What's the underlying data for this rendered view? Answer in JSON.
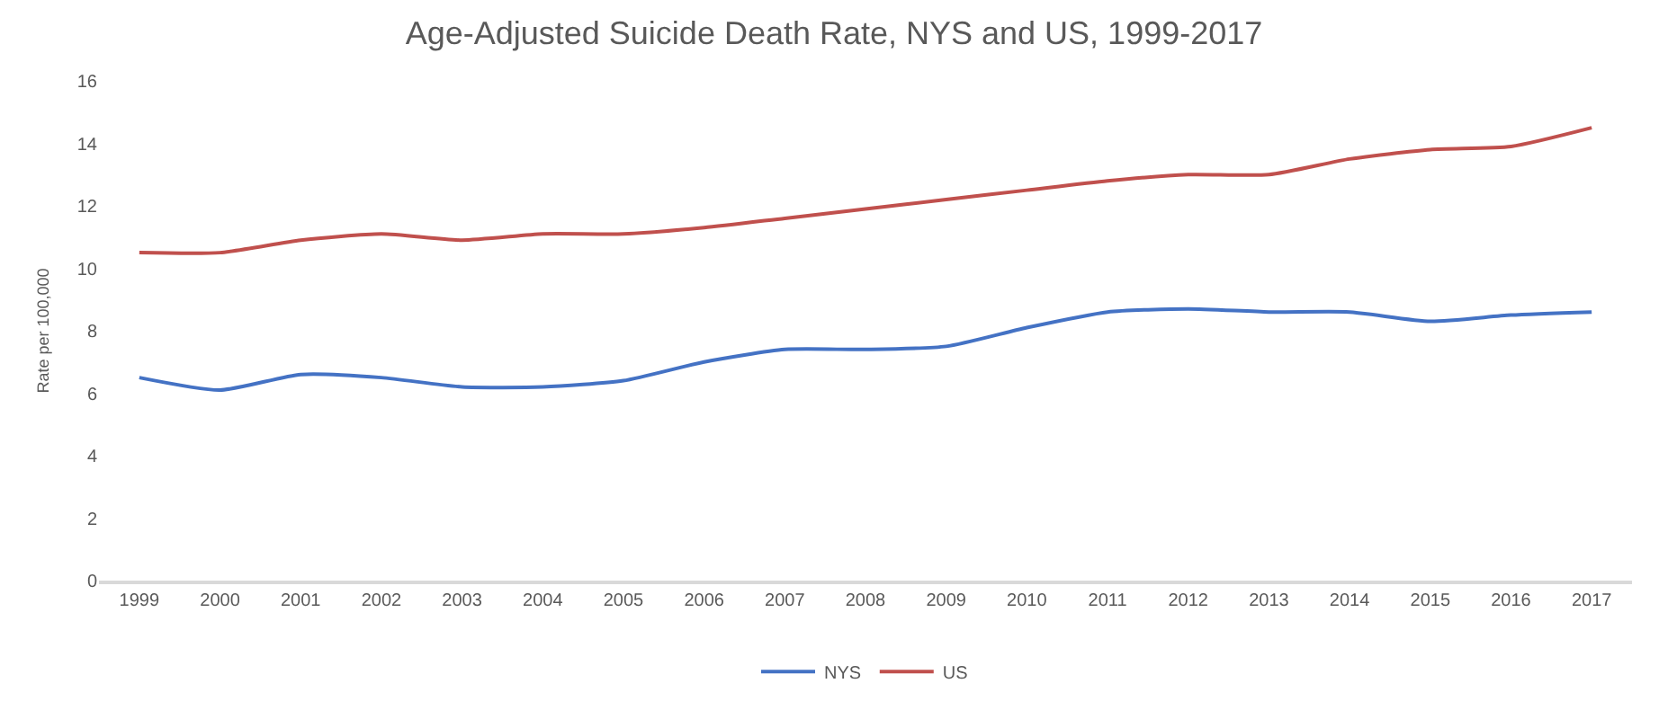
{
  "chart_data": {
    "type": "line",
    "title": "Age-Adjusted Suicide Death Rate, NYS and US, 1999-2017",
    "ylabel": "Rate per 100,000",
    "categories": [
      "1999",
      "2000",
      "2001",
      "2002",
      "2003",
      "2004",
      "2005",
      "2006",
      "2007",
      "2008",
      "2009",
      "2010",
      "2011",
      "2012",
      "2013",
      "2014",
      "2015",
      "2016",
      "2017"
    ],
    "series": [
      {
        "name": "NYS",
        "color": "#4472c4",
        "values": [
          6.5,
          6.1,
          6.6,
          6.5,
          6.2,
          6.2,
          6.4,
          7.0,
          7.4,
          7.4,
          7.5,
          8.1,
          8.6,
          8.7,
          8.6,
          8.6,
          8.3,
          8.5,
          8.6
        ]
      },
      {
        "name": "US",
        "color": "#c0504d",
        "values": [
          10.5,
          10.5,
          10.9,
          11.1,
          10.9,
          11.1,
          11.1,
          11.3,
          11.6,
          11.9,
          12.2,
          12.5,
          12.8,
          13.0,
          13.0,
          13.5,
          13.8,
          13.9,
          14.5
        ]
      }
    ],
    "ylim": [
      0,
      16
    ],
    "yticks": [
      0,
      2,
      4,
      6,
      8,
      10,
      12,
      14,
      16
    ],
    "grid": false,
    "legend": "bottom",
    "marker": "none",
    "line_style": "solid"
  }
}
